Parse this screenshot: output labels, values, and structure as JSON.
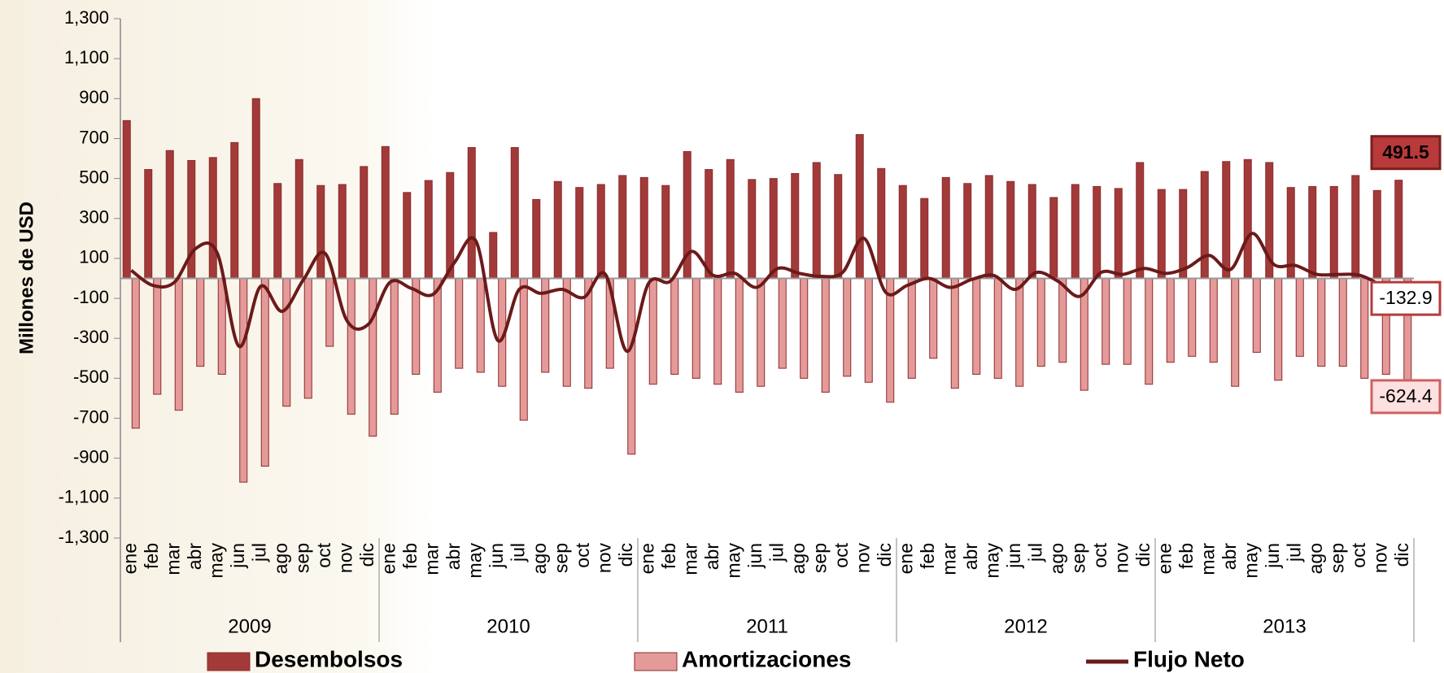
{
  "chart_data": {
    "type": "bar-line",
    "y_label": "Millones de USD",
    "categories": [
      "ene",
      "feb",
      "mar",
      "abr",
      "may",
      "jun",
      "jul",
      "ago",
      "sep",
      "oct",
      "nov",
      "dic",
      "ene",
      "feb",
      "mar",
      "abr",
      "may",
      "jun",
      "jul",
      "ago",
      "sep",
      "oct",
      "nov",
      "dic",
      "ene",
      "feb",
      "mar",
      "abr",
      "may",
      "jun",
      "jul",
      "ago",
      "sep",
      "oct",
      "nov",
      "dic",
      "ene",
      "feb",
      "mar",
      "abr",
      "may",
      "jun",
      "jul",
      "ago",
      "sep",
      "oct",
      "nov",
      "dic",
      "ene",
      "feb",
      "mar",
      "abr",
      "may",
      "jun",
      "jul",
      "ago",
      "sep",
      "oct",
      "nov",
      "dic"
    ],
    "years": [
      "2009",
      "2010",
      "2011",
      "2012",
      "2013"
    ],
    "series": [
      {
        "name": "Desembolsos",
        "kind": "bar",
        "color": "#a33a3a",
        "values": [
          790,
          545,
          640,
          590,
          605,
          680,
          900,
          475,
          595,
          465,
          470,
          560,
          660,
          430,
          490,
          530,
          655,
          230,
          655,
          395,
          485,
          455,
          470,
          515,
          505,
          465,
          635,
          545,
          595,
          495,
          500,
          525,
          580,
          520,
          720,
          550,
          465,
          400,
          505,
          475,
          515,
          485,
          470,
          405,
          470,
          460,
          450,
          580,
          445,
          445,
          535,
          585,
          595,
          580,
          455,
          460,
          460,
          515,
          440,
          491.5
        ]
      },
      {
        "name": "Amortizaciones",
        "kind": "bar",
        "color": "#e59a9a",
        "values": [
          -750,
          -580,
          -660,
          -440,
          -480,
          -1020,
          -940,
          -640,
          -600,
          -340,
          -680,
          -790,
          -680,
          -480,
          -570,
          -450,
          -470,
          -540,
          -710,
          -470,
          -540,
          -550,
          -450,
          -880,
          -530,
          -480,
          -500,
          -530,
          -570,
          -540,
          -450,
          -500,
          -570,
          -490,
          -520,
          -620,
          -500,
          -400,
          -550,
          -480,
          -500,
          -540,
          -440,
          -420,
          -560,
          -430,
          -430,
          -530,
          -420,
          -390,
          -420,
          -540,
          -370,
          -510,
          -390,
          -440,
          -440,
          -500,
          -480,
          -624.4
        ]
      },
      {
        "name": "Flujo Neto",
        "kind": "line",
        "color": "#6b1a1a",
        "values": [
          40,
          -35,
          -20,
          150,
          125,
          -340,
          -40,
          -165,
          -5,
          125,
          -210,
          -230,
          -20,
          -50,
          -80,
          80,
          185,
          -310,
          -55,
          -75,
          -55,
          -95,
          20,
          -365,
          -25,
          -15,
          135,
          15,
          25,
          -45,
          50,
          25,
          10,
          30,
          200,
          -70,
          -35,
          0,
          -45,
          -5,
          15,
          -55,
          30,
          -15,
          -90,
          30,
          20,
          50,
          25,
          55,
          115,
          45,
          225,
          70,
          65,
          20,
          20,
          15,
          -40,
          -132.9
        ]
      }
    ],
    "ylim": [
      -1300,
      1300
    ],
    "yticks": [
      {
        "value": 1300,
        "label": "1,300"
      },
      {
        "value": 1100,
        "label": "1,100"
      },
      900,
      700,
      500,
      300,
      100,
      -100,
      -300,
      -500,
      -700,
      -900,
      {
        "value": -1100,
        "label": "-1,100"
      },
      {
        "value": -1300,
        "label": "-1,300"
      }
    ]
  }
}
